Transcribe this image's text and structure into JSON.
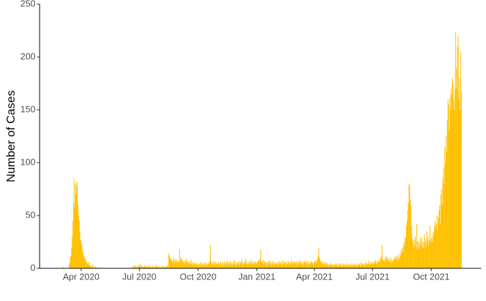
{
  "chart_data": {
    "type": "bar",
    "ylabel": "Number of Cases",
    "color": "#FFC000",
    "ylim": [
      0,
      250
    ],
    "yticks": [
      0,
      50,
      100,
      150,
      200,
      250
    ],
    "xlim": [
      "2020-01-27",
      "2021-12-18"
    ],
    "xticks": [
      {
        "value": "2020-04-01",
        "label": "Apr 2020"
      },
      {
        "value": "2020-07-01",
        "label": "Jul 2020"
      },
      {
        "value": "2020-10-01",
        "label": "Oct 2020"
      },
      {
        "value": "2021-01-01",
        "label": "Jan 2021"
      },
      {
        "value": "2021-04-01",
        "label": "Apr 2021"
      },
      {
        "value": "2021-07-01",
        "label": "Jul 2021"
      },
      {
        "value": "2021-10-01",
        "label": "Oct 2021"
      }
    ],
    "x": [
      "2020-03-01",
      "2020-03-02",
      "2020-03-03",
      "2020-03-04",
      "2020-03-05",
      "2020-03-06",
      "2020-03-07",
      "2020-03-08",
      "2020-03-09",
      "2020-03-10",
      "2020-03-11",
      "2020-03-12",
      "2020-03-13",
      "2020-03-14",
      "2020-03-15",
      "2020-03-16",
      "2020-03-17",
      "2020-03-18",
      "2020-03-19",
      "2020-03-20",
      "2020-03-21",
      "2020-03-22",
      "2020-03-23",
      "2020-03-24",
      "2020-03-25",
      "2020-03-26",
      "2020-03-27",
      "2020-03-28",
      "2020-03-29",
      "2020-03-30",
      "2020-03-31",
      "2020-04-01",
      "2020-04-02",
      "2020-04-03",
      "2020-04-04",
      "2020-04-05",
      "2020-04-06",
      "2020-04-07",
      "2020-04-08",
      "2020-04-09",
      "2020-04-10",
      "2020-04-11",
      "2020-04-12",
      "2020-04-13",
      "2020-04-14",
      "2020-04-15",
      "2020-04-16",
      "2020-04-17",
      "2020-04-18",
      "2020-04-19",
      "2020-04-20",
      "2020-04-21",
      "2020-04-22",
      "2020-04-23",
      "2020-04-24",
      "2020-04-25",
      "2020-04-26",
      "2020-04-27",
      "2020-04-28",
      "2020-04-29",
      "2020-04-30",
      "2020-05-01",
      "2020-05-02",
      "2020-05-03",
      "2020-05-04",
      "2020-05-05",
      "2020-05-06",
      "2020-05-07",
      "2020-05-08",
      "2020-05-09",
      "2020-05-10",
      "2020-05-11",
      "2020-05-12",
      "2020-05-13",
      "2020-05-14",
      "2020-05-15",
      "2020-05-16",
      "2020-05-17",
      "2020-05-18",
      "2020-05-19",
      "2020-05-20",
      "2020-05-21",
      "2020-05-22",
      "2020-05-23",
      "2020-05-24",
      "2020-05-25",
      "2020-05-26",
      "2020-05-27",
      "2020-05-28",
      "2020-05-29",
      "2020-05-30",
      "2020-05-31",
      "2020-06-01",
      "2020-06-02",
      "2020-06-03",
      "2020-06-04",
      "2020-06-05",
      "2020-06-06",
      "2020-06-07",
      "2020-06-08",
      "2020-06-09",
      "2020-06-10",
      "2020-06-11",
      "2020-06-12",
      "2020-06-13",
      "2020-06-14",
      "2020-06-15",
      "2020-06-16",
      "2020-06-17",
      "2020-06-18",
      "2020-06-19",
      "2020-06-20",
      "2020-06-21",
      "2020-06-22",
      "2020-06-23",
      "2020-06-24",
      "2020-06-25",
      "2020-06-26",
      "2020-06-27",
      "2020-06-28",
      "2020-06-29",
      "2020-06-30",
      "2020-07-01",
      "2020-07-02",
      "2020-07-03",
      "2020-07-04",
      "2020-07-05",
      "2020-07-06",
      "2020-07-07",
      "2020-07-08",
      "2020-07-09",
      "2020-07-10",
      "2020-07-11",
      "2020-07-12",
      "2020-07-13",
      "2020-07-14",
      "2020-07-15",
      "2020-07-16",
      "2020-07-17",
      "2020-07-18",
      "2020-07-19",
      "2020-07-20",
      "2020-07-21",
      "2020-07-22",
      "2020-07-23",
      "2020-07-24",
      "2020-07-25",
      "2020-07-26",
      "2020-07-27",
      "2020-07-28",
      "2020-07-29",
      "2020-07-30",
      "2020-07-31",
      "2020-08-01",
      "2020-08-02",
      "2020-08-03",
      "2020-08-04",
      "2020-08-05",
      "2020-08-06",
      "2020-08-07",
      "2020-08-08",
      "2020-08-09",
      "2020-08-10",
      "2020-08-11",
      "2020-08-12",
      "2020-08-13",
      "2020-08-14",
      "2020-08-15",
      "2020-08-16",
      "2020-08-17",
      "2020-08-18",
      "2020-08-19",
      "2020-08-20",
      "2020-08-21",
      "2020-08-22",
      "2020-08-23",
      "2020-08-24",
      "2020-08-25",
      "2020-08-26",
      "2020-08-27",
      "2020-08-28",
      "2020-08-29",
      "2020-08-30",
      "2020-08-31",
      "2020-09-01",
      "2020-09-02",
      "2020-09-03",
      "2020-09-04",
      "2020-09-05",
      "2020-09-06",
      "2020-09-07",
      "2020-09-08",
      "2020-09-09",
      "2020-09-10",
      "2020-09-11",
      "2020-09-12",
      "2020-09-13",
      "2020-09-14",
      "2020-09-15",
      "2020-09-16",
      "2020-09-17",
      "2020-09-18",
      "2020-09-19",
      "2020-09-20",
      "2020-09-21",
      "2020-09-22",
      "2020-09-23",
      "2020-09-24",
      "2020-09-25",
      "2020-09-26",
      "2020-09-27",
      "2020-09-28",
      "2020-09-29",
      "2020-09-30",
      "2020-10-01",
      "2020-10-02",
      "2020-10-03",
      "2020-10-04",
      "2020-10-05",
      "2020-10-06",
      "2020-10-07",
      "2020-10-08",
      "2020-10-09",
      "2020-10-10",
      "2020-10-11",
      "2020-10-12",
      "2020-10-13",
      "2020-10-14",
      "2020-10-15",
      "2020-10-16",
      "2020-10-17",
      "2020-10-18",
      "2020-10-19",
      "2020-10-20",
      "2020-10-21",
      "2020-10-22",
      "2020-10-23",
      "2020-10-24",
      "2020-10-25",
      "2020-10-26",
      "2020-10-27",
      "2020-10-28",
      "2020-10-29",
      "2020-10-30",
      "2020-10-31",
      "2020-11-01",
      "2020-11-02",
      "2020-11-03",
      "2020-11-04",
      "2020-11-05",
      "2020-11-06",
      "2020-11-07",
      "2020-11-08",
      "2020-11-09",
      "2020-11-10",
      "2020-11-11",
      "2020-11-12",
      "2020-11-13",
      "2020-11-14",
      "2020-11-15",
      "2020-11-16",
      "2020-11-17",
      "2020-11-18",
      "2020-11-19",
      "2020-11-20",
      "2020-11-21",
      "2020-11-22",
      "2020-11-23",
      "2020-11-24",
      "2020-11-25",
      "2020-11-26",
      "2020-11-27",
      "2020-11-28",
      "2020-11-29",
      "2020-11-30",
      "2020-12-01",
      "2020-12-02",
      "2020-12-03",
      "2020-12-04",
      "2020-12-05",
      "2020-12-06",
      "2020-12-07",
      "2020-12-08",
      "2020-12-09",
      "2020-12-10",
      "2020-12-11",
      "2020-12-12",
      "2020-12-13",
      "2020-12-14",
      "2020-12-15",
      "2020-12-16",
      "2020-12-17",
      "2020-12-18",
      "2020-12-19",
      "2020-12-20",
      "2020-12-21",
      "2020-12-22",
      "2020-12-23",
      "2020-12-24",
      "2020-12-25",
      "2020-12-26",
      "2020-12-27",
      "2020-12-28",
      "2020-12-29",
      "2020-12-30",
      "2020-12-31",
      "2021-01-01",
      "2021-01-02",
      "2021-01-03",
      "2021-01-04",
      "2021-01-05",
      "2021-01-06",
      "2021-01-07",
      "2021-01-08",
      "2021-01-09",
      "2021-01-10",
      "2021-01-11",
      "2021-01-12",
      "2021-01-13",
      "2021-01-14",
      "2021-01-15",
      "2021-01-16",
      "2021-01-17",
      "2021-01-18",
      "2021-01-19",
      "2021-01-20",
      "2021-01-21",
      "2021-01-22",
      "2021-01-23",
      "2021-01-24",
      "2021-01-25",
      "2021-01-26",
      "2021-01-27",
      "2021-01-28",
      "2021-01-29",
      "2021-01-30",
      "2021-01-31",
      "2021-02-01",
      "2021-02-02",
      "2021-02-03",
      "2021-02-04",
      "2021-02-05",
      "2021-02-06",
      "2021-02-07",
      "2021-02-08",
      "2021-02-09",
      "2021-02-10",
      "2021-02-11",
      "2021-02-12",
      "2021-02-13",
      "2021-02-14",
      "2021-02-15",
      "2021-02-16",
      "2021-02-17",
      "2021-02-18",
      "2021-02-19",
      "2021-02-20",
      "2021-02-21",
      "2021-02-22",
      "2021-02-23",
      "2021-02-24",
      "2021-02-25",
      "2021-02-26",
      "2021-02-27",
      "2021-02-28",
      "2021-03-01",
      "2021-03-02",
      "2021-03-03",
      "2021-03-04",
      "2021-03-05",
      "2021-03-06",
      "2021-03-07",
      "2021-03-08",
      "2021-03-09",
      "2021-03-10",
      "2021-03-11",
      "2021-03-12",
      "2021-03-13",
      "2021-03-14",
      "2021-03-15",
      "2021-03-16",
      "2021-03-17",
      "2021-03-18",
      "2021-03-19",
      "2021-03-20",
      "2021-03-21",
      "2021-03-22",
      "2021-03-23",
      "2021-03-24",
      "2021-03-25",
      "2021-03-26",
      "2021-03-27",
      "2021-03-28",
      "2021-03-29",
      "2021-03-30",
      "2021-03-31",
      "2021-04-01",
      "2021-04-02",
      "2021-04-03",
      "2021-04-04",
      "2021-04-05",
      "2021-04-06",
      "2021-04-07",
      "2021-04-08",
      "2021-04-09",
      "2021-04-10",
      "2021-04-11",
      "2021-04-12",
      "2021-04-13",
      "2021-04-14",
      "2021-04-15",
      "2021-04-16",
      "2021-04-17",
      "2021-04-18",
      "2021-04-19",
      "2021-04-20",
      "2021-04-21",
      "2021-04-22",
      "2021-04-23",
      "2021-04-24",
      "2021-04-25",
      "2021-04-26",
      "2021-04-27",
      "2021-04-28",
      "2021-04-29",
      "2021-04-30",
      "2021-05-01",
      "2021-05-02",
      "2021-05-03",
      "2021-05-04",
      "2021-05-05",
      "2021-05-06",
      "2021-05-07",
      "2021-05-08",
      "2021-05-09",
      "2021-05-10",
      "2021-05-11",
      "2021-05-12",
      "2021-05-13",
      "2021-05-14",
      "2021-05-15",
      "2021-05-16",
      "2021-05-17",
      "2021-05-18",
      "2021-05-19",
      "2021-05-20",
      "2021-05-21",
      "2021-05-22",
      "2021-05-23",
      "2021-05-24",
      "2021-05-25",
      "2021-05-26",
      "2021-05-27",
      "2021-05-28",
      "2021-05-29",
      "2021-05-30",
      "2021-05-31",
      "2021-06-01",
      "2021-06-02",
      "2021-06-03",
      "2021-06-04",
      "2021-06-05",
      "2021-06-06",
      "2021-06-07",
      "2021-06-08",
      "2021-06-09",
      "2021-06-10",
      "2021-06-11",
      "2021-06-12",
      "2021-06-13",
      "2021-06-14",
      "2021-06-15",
      "2021-06-16",
      "2021-06-17",
      "2021-06-18",
      "2021-06-19",
      "2021-06-20",
      "2021-06-21",
      "2021-06-22",
      "2021-06-23",
      "2021-06-24",
      "2021-06-25",
      "2021-06-26",
      "2021-06-27",
      "2021-06-28",
      "2021-06-29",
      "2021-06-30",
      "2021-07-01",
      "2021-07-02",
      "2021-07-03",
      "2021-07-04",
      "2021-07-05",
      "2021-07-06",
      "2021-07-07",
      "2021-07-08",
      "2021-07-09",
      "2021-07-10",
      "2021-07-11",
      "2021-07-12",
      "2021-07-13",
      "2021-07-14",
      "2021-07-15",
      "2021-07-16",
      "2021-07-17",
      "2021-07-18",
      "2021-07-19",
      "2021-07-20",
      "2021-07-21",
      "2021-07-22",
      "2021-07-23",
      "2021-07-24",
      "2021-07-25",
      "2021-07-26",
      "2021-07-27",
      "2021-07-28",
      "2021-07-29",
      "2021-07-30",
      "2021-07-31",
      "2021-08-01",
      "2021-08-02",
      "2021-08-03",
      "2021-08-04",
      "2021-08-05",
      "2021-08-06",
      "2021-08-07",
      "2021-08-08",
      "2021-08-09",
      "2021-08-10",
      "2021-08-11",
      "2021-08-12",
      "2021-08-13",
      "2021-08-14",
      "2021-08-15",
      "2021-08-16",
      "2021-08-17",
      "2021-08-18",
      "2021-08-19",
      "2021-08-20",
      "2021-08-21",
      "2021-08-22",
      "2021-08-23",
      "2021-08-24",
      "2021-08-25",
      "2021-08-26",
      "2021-08-27",
      "2021-08-28",
      "2021-08-29",
      "2021-08-30",
      "2021-08-31",
      "2021-09-01",
      "2021-09-02",
      "2021-09-03",
      "2021-09-04",
      "2021-09-05",
      "2021-09-06",
      "2021-09-07",
      "2021-09-08",
      "2021-09-09",
      "2021-09-10",
      "2021-09-11",
      "2021-09-12",
      "2021-09-13",
      "2021-09-14",
      "2021-09-15",
      "2021-09-16",
      "2021-09-17",
      "2021-09-18",
      "2021-09-19",
      "2021-09-20",
      "2021-09-21",
      "2021-09-22",
      "2021-09-23",
      "2021-09-24",
      "2021-09-25",
      "2021-09-26",
      "2021-09-27",
      "2021-09-28",
      "2021-09-29",
      "2021-09-30",
      "2021-10-01",
      "2021-10-02",
      "2021-10-03",
      "2021-10-04",
      "2021-10-05",
      "2021-10-06",
      "2021-10-07",
      "2021-10-08",
      "2021-10-09",
      "2021-10-10",
      "2021-10-11",
      "2021-10-12",
      "2021-10-13",
      "2021-10-14",
      "2021-10-15",
      "2021-10-16",
      "2021-10-17",
      "2021-10-18",
      "2021-10-19",
      "2021-10-20",
      "2021-10-21",
      "2021-10-22",
      "2021-10-23",
      "2021-10-24",
      "2021-10-25",
      "2021-10-26",
      "2021-10-27",
      "2021-10-28",
      "2021-10-29",
      "2021-10-30",
      "2021-10-31",
      "2021-11-01",
      "2021-11-02",
      "2021-11-03",
      "2021-11-04",
      "2021-11-05",
      "2021-11-06",
      "2021-11-07",
      "2021-11-08",
      "2021-11-09",
      "2021-11-10",
      "2021-11-11",
      "2021-11-12",
      "2021-11-13",
      "2021-11-14",
      "2021-11-15",
      "2021-11-16",
      "2021-11-17"
    ],
    "values": [
      0,
      0,
      2,
      0,
      0,
      0,
      0,
      0,
      0,
      0,
      0,
      0,
      3,
      5,
      10,
      12,
      20,
      30,
      45,
      62,
      84,
      58,
      80,
      70,
      82,
      78,
      60,
      50,
      45,
      35,
      27,
      25,
      22,
      18,
      15,
      12,
      10,
      8,
      9,
      6,
      5,
      4,
      6,
      3,
      5,
      2,
      3,
      1,
      2,
      4,
      1,
      0,
      1,
      2,
      0,
      1,
      0,
      0,
      1,
      0,
      0,
      0,
      1,
      0,
      0,
      0,
      0,
      0,
      0,
      0,
      0,
      0,
      0,
      0,
      0,
      0,
      0,
      0,
      0,
      0,
      0,
      0,
      0,
      0,
      0,
      0,
      0,
      0,
      0,
      0,
      0,
      0,
      0,
      0,
      0,
      0,
      0,
      0,
      0,
      0,
      0,
      0,
      0,
      0,
      0,
      0,
      0,
      0,
      0,
      0,
      0,
      0,
      2,
      1,
      2,
      3,
      1,
      2,
      0,
      3,
      1,
      2,
      2,
      4,
      1,
      3,
      2,
      1,
      0,
      2,
      3,
      1,
      2,
      2,
      1,
      0,
      3,
      2,
      1,
      2,
      0,
      1,
      3,
      2,
      1,
      0,
      2,
      1,
      3,
      2,
      1,
      2,
      1,
      1,
      2,
      1,
      0,
      2,
      1,
      3,
      1,
      2,
      0,
      1,
      2,
      3,
      1,
      2,
      14,
      12,
      10,
      8,
      9,
      7,
      6,
      8,
      10,
      5,
      7,
      9,
      6,
      8,
      5,
      7,
      6,
      18,
      8,
      10,
      7,
      9,
      5,
      6,
      8,
      4,
      7,
      6,
      9,
      5,
      7,
      4,
      6,
      3,
      5,
      8,
      4,
      6,
      3,
      5,
      4,
      6,
      3,
      5,
      4,
      3,
      3,
      5,
      4,
      2,
      6,
      3,
      5,
      4,
      2,
      5,
      3,
      6,
      4,
      2,
      5,
      3,
      4,
      6,
      5,
      22,
      8,
      4,
      6,
      3,
      5,
      7,
      4,
      6,
      3,
      5,
      4,
      4,
      6,
      3,
      5,
      7,
      4,
      2,
      6,
      5,
      3,
      7,
      4,
      5,
      6,
      3,
      8,
      4,
      5,
      6,
      3,
      7,
      4,
      5,
      3,
      6,
      4,
      8,
      5,
      3,
      6,
      4,
      6,
      5,
      3,
      7,
      4,
      6,
      8,
      5,
      3,
      6,
      4,
      7,
      5,
      9,
      4,
      6,
      3,
      5,
      7,
      4,
      6,
      8,
      5,
      3,
      6,
      4,
      7,
      5,
      6,
      4,
      6,
      5,
      7,
      8,
      6,
      9,
      18,
      7,
      5,
      6,
      8,
      4,
      7,
      5,
      6,
      3,
      5,
      7,
      4,
      6,
      8,
      5,
      3,
      6,
      4,
      7,
      5,
      3,
      6,
      4,
      5,
      4,
      6,
      3,
      5,
      7,
      4,
      6,
      5,
      3,
      8,
      4,
      6,
      5,
      7,
      3,
      5,
      6,
      4,
      7,
      5,
      3,
      6,
      4,
      8,
      5,
      6,
      4,
      7,
      5,
      6,
      4,
      7,
      3,
      6,
      5,
      8,
      4,
      6,
      7,
      5,
      3,
      6,
      4,
      7,
      5,
      6,
      8,
      4,
      5,
      7,
      3,
      6,
      5,
      4,
      7,
      6,
      5,
      3,
      6,
      6,
      7,
      5,
      8,
      6,
      9,
      12,
      19,
      10,
      8,
      6,
      5,
      7,
      4,
      6,
      3,
      5,
      4,
      6,
      3,
      5,
      4,
      2,
      4,
      3,
      5,
      2,
      4,
      3,
      4,
      3,
      2,
      4,
      3,
      5,
      2,
      4,
      3,
      2,
      5,
      3,
      4,
      2,
      3,
      5,
      2,
      4,
      3,
      2,
      4,
      3,
      5,
      2,
      3,
      4,
      2,
      3,
      5,
      2,
      4,
      3,
      2,
      4,
      3,
      5,
      2,
      3,
      4,
      2,
      5,
      3,
      4,
      2,
      6,
      3,
      4,
      5,
      2,
      4,
      3,
      5,
      6,
      3,
      4,
      5,
      7,
      4,
      3,
      6,
      5,
      4,
      5,
      6,
      4,
      7,
      5,
      8,
      4,
      6,
      7,
      5,
      9,
      6,
      8,
      10,
      12,
      22,
      9,
      7,
      8,
      6,
      10,
      12,
      8,
      9,
      11,
      7,
      6,
      10,
      8,
      5,
      9,
      6,
      8,
      7,
      10,
      9,
      12,
      8,
      11,
      9,
      13,
      7,
      10,
      14,
      12,
      18,
      15,
      20,
      16,
      25,
      22,
      30,
      28,
      40,
      45,
      55,
      62,
      80,
      78,
      65,
      60,
      40,
      28,
      25,
      20,
      27,
      22,
      30,
      18,
      42,
      25,
      20,
      26,
      18,
      24,
      30,
      22,
      28,
      20,
      25,
      19,
      32,
      24,
      28,
      20,
      35,
      26,
      30,
      22,
      27,
      40,
      25,
      28,
      30,
      25,
      35,
      32,
      40,
      45,
      38,
      42,
      50,
      35,
      48,
      55,
      60,
      42,
      70,
      75,
      60,
      85,
      95,
      80,
      115,
      100,
      125,
      110,
      140,
      160,
      155,
      130,
      162,
      150,
      170,
      165,
      180,
      175,
      160,
      150,
      170,
      224,
      190,
      170,
      210,
      220,
      160,
      180,
      150,
      205,
      168
    ]
  }
}
